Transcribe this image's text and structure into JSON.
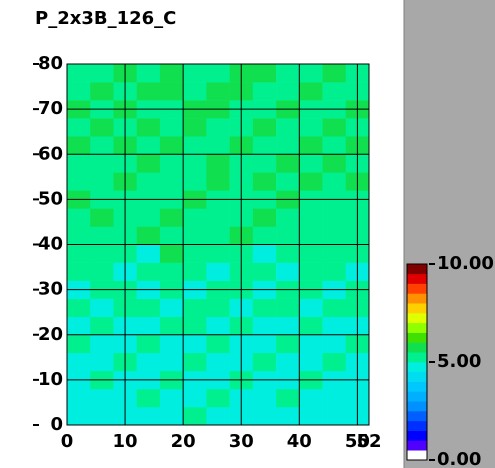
{
  "chart_data": {
    "type": "heatmap",
    "title": "P_2x3B_126_C",
    "xlim": [
      0,
      52
    ],
    "ylim": [
      0,
      80
    ],
    "xticks": [
      0,
      10,
      20,
      30,
      40,
      50,
      52
    ],
    "yticks": [
      0,
      10,
      20,
      30,
      40,
      50,
      60,
      70,
      80
    ],
    "grid": true,
    "clim": [
      0,
      10
    ],
    "cticks": [
      {
        "value": 0,
        "label": "0.00"
      },
      {
        "value": 5,
        "label": "5.00"
      },
      {
        "value": 10,
        "label": "10.00"
      }
    ],
    "colorscale": [
      "#ffffff",
      "#5000ff",
      "#0000ff",
      "#0030ff",
      "#0060ff",
      "#0090ff",
      "#00b0ff",
      "#00c8ff",
      "#00dcf0",
      "#00eee0",
      "#00f090",
      "#10e050",
      "#40e000",
      "#90ff00",
      "#e0ff00",
      "#ffd000",
      "#ff9000",
      "#ff4000",
      "#e00000",
      "#800000"
    ],
    "z": [
      [
        4.7,
        4.8,
        4.6,
        4.9,
        4.7,
        5.1,
        4.8,
        4.7,
        4.9,
        4.6,
        4.8,
        4.7,
        4.9
      ],
      [
        4.8,
        4.6,
        4.9,
        5.2,
        4.7,
        4.8,
        5.0,
        4.6,
        4.8,
        5.1,
        4.7,
        4.8,
        4.6
      ],
      [
        4.9,
        5.1,
        4.7,
        4.8,
        5.2,
        4.7,
        4.9,
        5.1,
        4.7,
        4.9,
        5.0,
        4.7,
        4.8
      ],
      [
        4.7,
        4.9,
        5.2,
        4.8,
        4.9,
        5.3,
        4.7,
        4.9,
        5.2,
        4.8,
        4.7,
        5.1,
        4.9
      ],
      [
        5.1,
        4.8,
        4.9,
        5.3,
        4.7,
        4.9,
        5.1,
        4.8,
        4.9,
        5.2,
        4.9,
        4.8,
        5.1
      ],
      [
        4.9,
        5.2,
        4.8,
        4.9,
        5.4,
        5.1,
        4.8,
        5.3,
        4.9,
        4.8,
        5.2,
        4.9,
        4.8
      ],
      [
        5.2,
        4.9,
        5.3,
        5.1,
        4.9,
        5.2,
        5.4,
        4.9,
        5.1,
        5.3,
        4.9,
        5.2,
        5.0
      ],
      [
        4.9,
        5.3,
        5.1,
        4.8,
        5.2,
        4.9,
        5.1,
        5.3,
        4.9,
        5.1,
        5.4,
        4.9,
        5.2
      ],
      [
        5.3,
        5.0,
        4.9,
        5.4,
        5.1,
        5.3,
        4.9,
        5.2,
        5.4,
        4.9,
        5.1,
        5.3,
        4.9
      ],
      [
        5.1,
        5.4,
        5.2,
        4.9,
        5.5,
        5.0,
        5.3,
        5.1,
        4.9,
        5.4,
        5.2,
        5.0,
        5.3
      ],
      [
        5.4,
        5.1,
        5.3,
        5.5,
        5.0,
        5.4,
        5.2,
        5.5,
        5.1,
        5.3,
        5.0,
        5.4,
        5.1
      ],
      [
        5.2,
        5.5,
        5.0,
        5.3,
        5.6,
        5.2,
        5.4,
        5.1,
        5.5,
        5.2,
        5.4,
        5.1,
        5.3
      ],
      [
        5.5,
        5.2,
        5.4,
        5.1,
        5.3,
        5.6,
        5.1,
        5.4,
        5.3,
        5.6,
        5.1,
        5.4,
        5.2
      ],
      [
        5.1,
        5.4,
        5.6,
        5.3,
        5.2,
        5.4,
        5.5,
        5.2,
        5.6,
        5.1,
        5.5,
        5.3,
        5.6
      ],
      [
        5.4,
        5.2,
        5.3,
        5.6,
        5.4,
        5.1,
        5.6,
        5.3,
        5.2,
        5.5,
        5.3,
        5.6,
        5.2
      ],
      [
        5.6,
        5.3,
        5.5,
        5.2,
        5.7,
        5.4,
        5.3,
        5.6,
        5.4,
        5.2,
        5.6,
        5.3,
        5.5
      ],
      [
        5.3,
        5.6,
        5.2,
        5.5,
        5.3,
        5.6,
        5.4,
        5.2,
        5.7,
        5.4,
        5.3,
        5.5,
        5.2
      ],
      [
        5.5,
        5.2,
        5.6,
        5.4,
        5.2,
        5.5,
        5.7,
        5.4,
        5.3,
        5.6,
        5.2,
        5.4,
        5.6
      ],
      [
        5.2,
        5.5,
        5.4,
        5.7,
        5.5,
        5.3,
        5.5,
        5.6,
        5.2,
        5.4,
        5.7,
        5.3,
        5.4
      ],
      [
        5.4,
        5.3,
        5.6,
        5.3,
        5.6,
        5.4,
        5.2,
        5.5,
        5.6,
        5.3,
        5.4,
        5.6,
        5.3
      ]
    ]
  }
}
